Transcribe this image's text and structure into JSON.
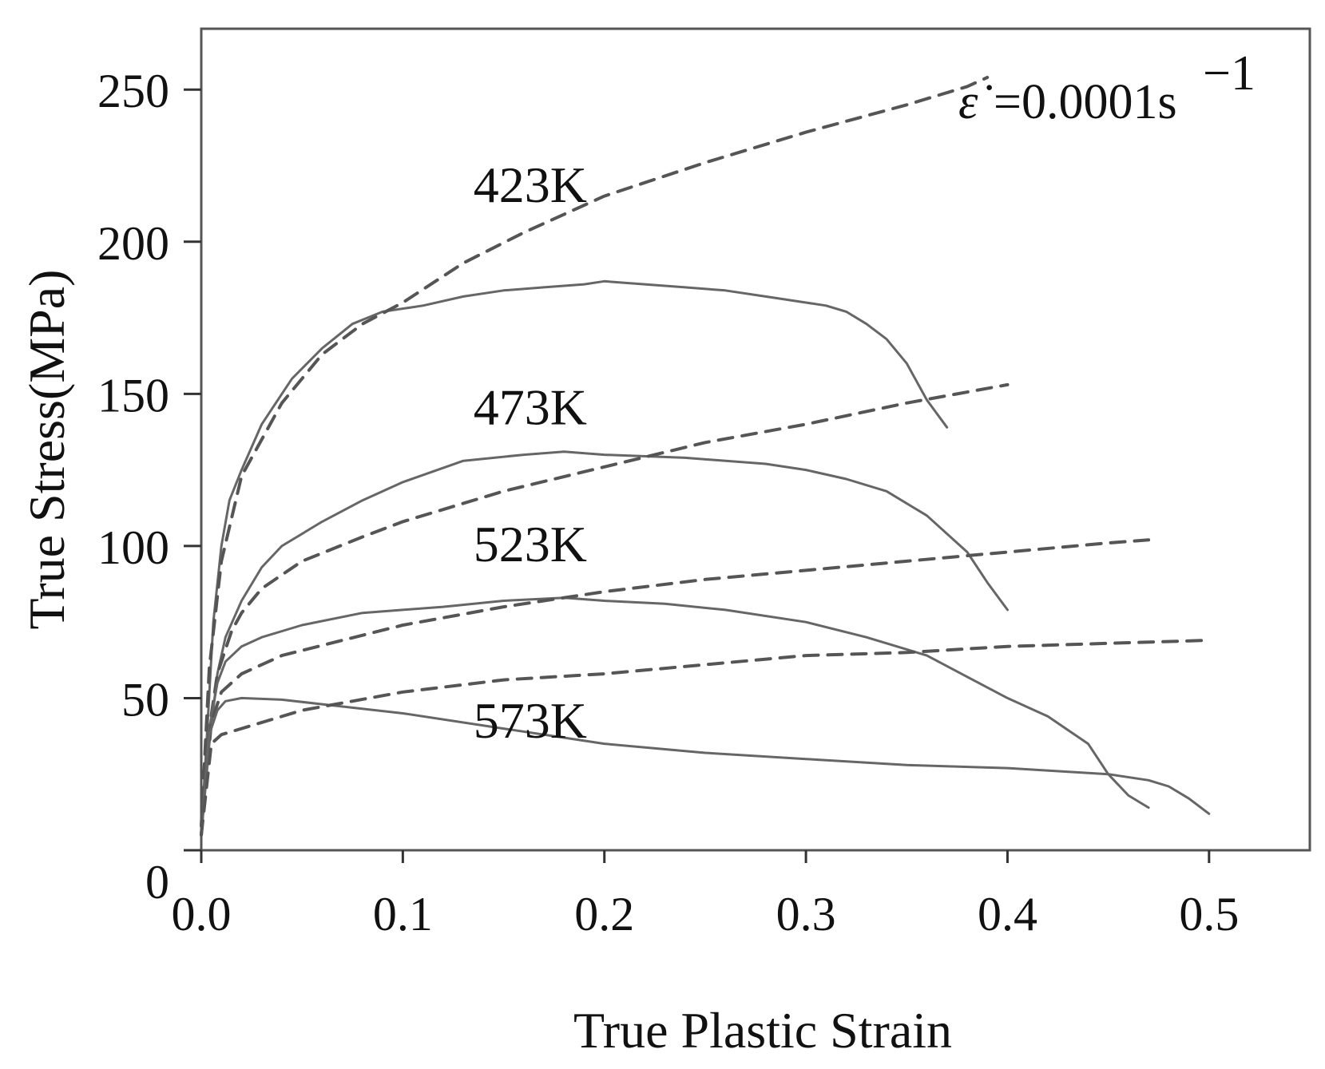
{
  "chart_data": {
    "type": "line",
    "title": "",
    "xlabel": "True Plastic Strain",
    "ylabel": "True Stress(MPa)",
    "xlim": [
      0,
      0.55
    ],
    "ylim": [
      0,
      270
    ],
    "xticks": [
      0.0,
      0.1,
      0.2,
      0.3,
      0.4,
      0.5
    ],
    "xtick_labels": [
      "0.0",
      "0.1",
      "0.2",
      "0.3",
      "0.4",
      "0.5"
    ],
    "yticks": [
      0,
      50,
      100,
      150,
      200,
      250
    ],
    "ytick_labels": [
      "0",
      "50",
      "100",
      "150",
      "200",
      "250"
    ],
    "grid": false,
    "legend": "none",
    "annotation": {
      "text": "=0.0001s",
      "superscript": "−1",
      "symbol": "ε̇"
    },
    "temperature_labels": [
      {
        "text": "423K",
        "x": 0.135,
        "y": 213
      },
      {
        "text": "473K",
        "x": 0.135,
        "y": 140
      },
      {
        "text": "523K",
        "x": 0.135,
        "y": 95
      },
      {
        "text": "573K",
        "x": 0.135,
        "y": 37
      }
    ],
    "series": [
      {
        "style": "solid",
        "temperature": "423K",
        "x": [
          0.0,
          0.003,
          0.006,
          0.01,
          0.014,
          0.02,
          0.03,
          0.045,
          0.06,
          0.075,
          0.09,
          0.11,
          0.13,
          0.15,
          0.17,
          0.19,
          0.2,
          0.22,
          0.24,
          0.26,
          0.28,
          0.3,
          0.31,
          0.32,
          0.33,
          0.34,
          0.35,
          0.36,
          0.37
        ],
        "y": [
          5,
          40,
          75,
          100,
          115,
          125,
          140,
          155,
          165,
          173,
          177,
          179,
          182,
          184,
          185,
          186,
          187,
          186,
          185,
          184,
          182,
          180,
          179,
          177,
          173,
          168,
          160,
          148,
          139
        ]
      },
      {
        "style": "dashed",
        "temperature": "423K",
        "x": [
          0.0,
          0.004,
          0.01,
          0.02,
          0.04,
          0.06,
          0.08,
          0.1,
          0.13,
          0.16,
          0.2,
          0.25,
          0.3,
          0.35,
          0.38,
          0.39
        ],
        "y": [
          8,
          60,
          95,
          123,
          147,
          163,
          173,
          180,
          193,
          203,
          215,
          226,
          236,
          245,
          251,
          254
        ]
      },
      {
        "style": "solid",
        "temperature": "473K",
        "x": [
          0.0,
          0.004,
          0.008,
          0.012,
          0.02,
          0.03,
          0.04,
          0.06,
          0.08,
          0.1,
          0.13,
          0.16,
          0.18,
          0.2,
          0.24,
          0.28,
          0.3,
          0.32,
          0.34,
          0.36,
          0.38,
          0.39,
          0.4
        ],
        "y": [
          5,
          35,
          58,
          70,
          82,
          93,
          100,
          108,
          115,
          121,
          128,
          130,
          131,
          130,
          129,
          127,
          125,
          122,
          118,
          110,
          98,
          88,
          79
        ]
      },
      {
        "style": "dashed",
        "temperature": "473K",
        "x": [
          0.0,
          0.004,
          0.008,
          0.015,
          0.02,
          0.03,
          0.05,
          0.08,
          0.1,
          0.15,
          0.2,
          0.25,
          0.3,
          0.35,
          0.4
        ],
        "y": [
          5,
          40,
          58,
          72,
          78,
          86,
          95,
          103,
          108,
          118,
          126,
          134,
          140,
          147,
          153
        ]
      },
      {
        "style": "solid",
        "temperature": "523K",
        "x": [
          0.0,
          0.004,
          0.008,
          0.012,
          0.02,
          0.03,
          0.05,
          0.08,
          0.1,
          0.12,
          0.15,
          0.18,
          0.2,
          0.23,
          0.26,
          0.3,
          0.33,
          0.36,
          0.38,
          0.4,
          0.42,
          0.44,
          0.45,
          0.46,
          0.47
        ],
        "y": [
          5,
          40,
          55,
          62,
          67,
          70,
          74,
          78,
          79,
          80,
          82,
          83,
          82,
          81,
          79,
          75,
          70,
          64,
          57,
          50,
          44,
          35,
          25,
          18,
          14
        ]
      },
      {
        "style": "dashed",
        "temperature": "523K",
        "x": [
          0.0,
          0.005,
          0.01,
          0.02,
          0.04,
          0.07,
          0.1,
          0.15,
          0.2,
          0.25,
          0.3,
          0.35,
          0.4,
          0.45,
          0.47
        ],
        "y": [
          5,
          42,
          52,
          58,
          64,
          69,
          74,
          80,
          85,
          89,
          92,
          95,
          98,
          101,
          102
        ]
      },
      {
        "style": "solid",
        "temperature": "573K",
        "x": [
          0.0,
          0.004,
          0.008,
          0.012,
          0.02,
          0.04,
          0.06,
          0.1,
          0.15,
          0.2,
          0.25,
          0.3,
          0.35,
          0.4,
          0.45,
          0.47,
          0.48,
          0.49,
          0.5
        ],
        "y": [
          5,
          38,
          46,
          49,
          50,
          49.5,
          48,
          45,
          40,
          35,
          32,
          30,
          28,
          27,
          25,
          23,
          21,
          17,
          12
        ]
      },
      {
        "style": "dashed",
        "temperature": "573K",
        "x": [
          0.0,
          0.005,
          0.01,
          0.05,
          0.1,
          0.15,
          0.2,
          0.25,
          0.3,
          0.35,
          0.4,
          0.45,
          0.5
        ],
        "y": [
          5,
          35,
          38,
          46,
          52,
          56,
          58,
          61,
          64,
          65,
          67,
          68,
          69
        ]
      }
    ]
  }
}
